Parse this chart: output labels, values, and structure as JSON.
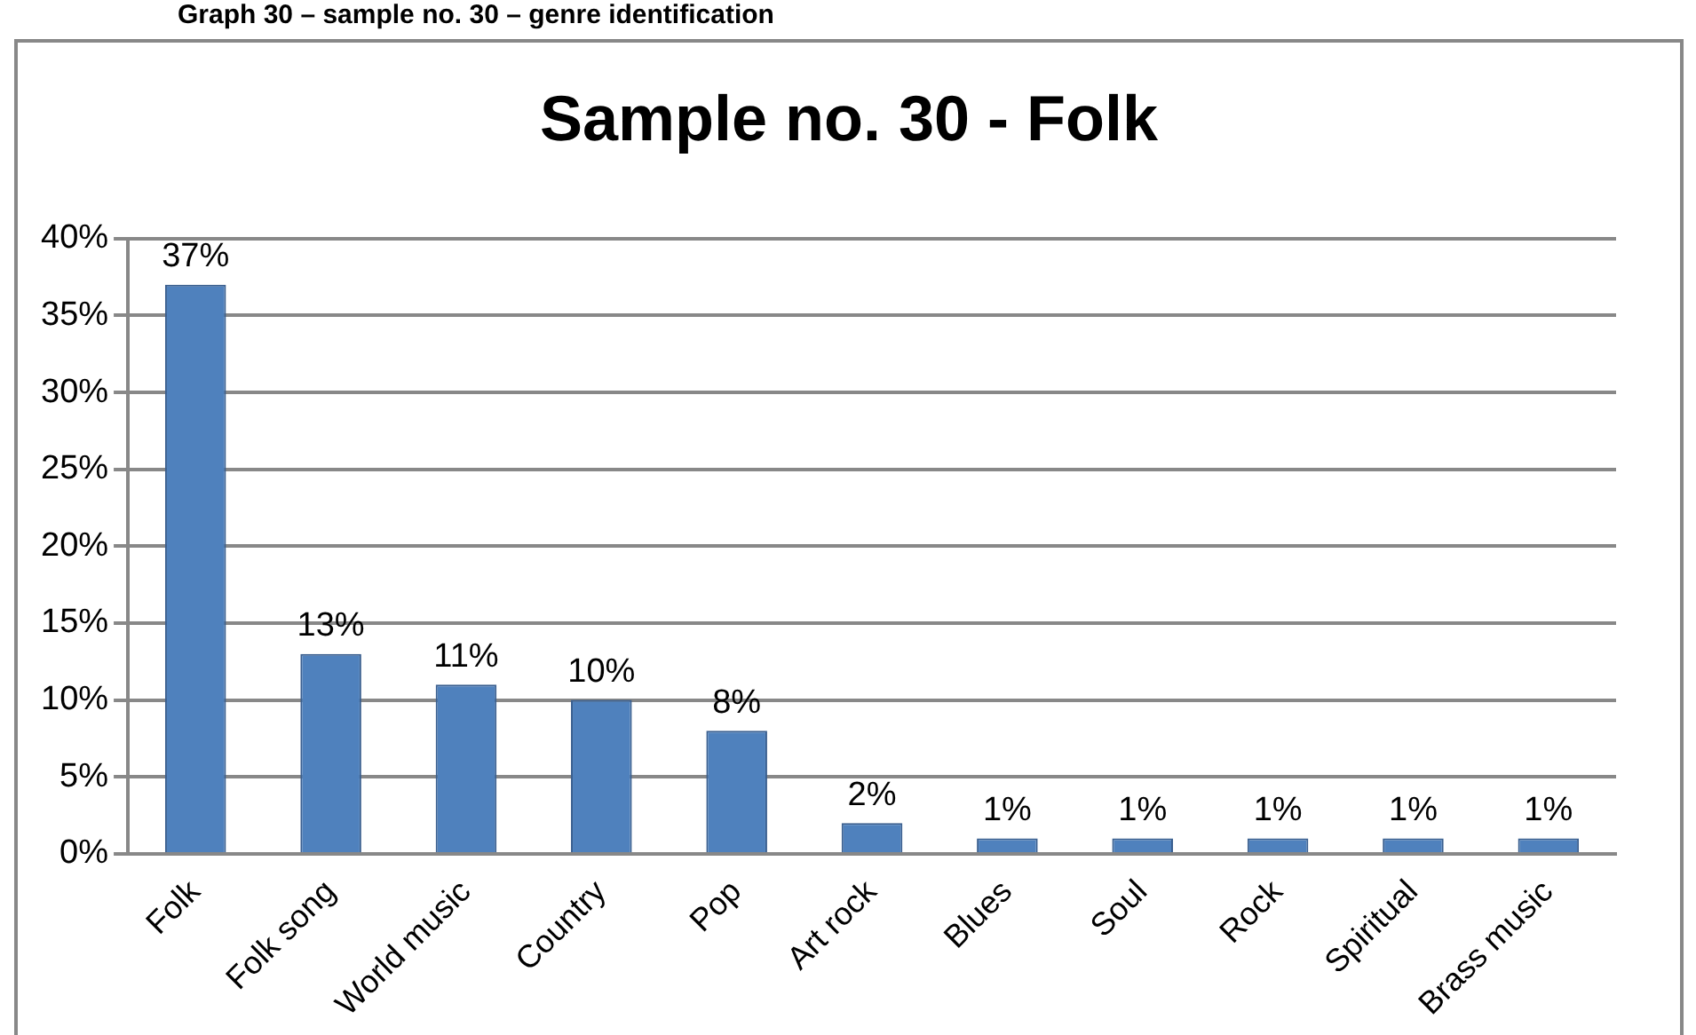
{
  "chart_data": {
    "type": "bar",
    "title": "Sample no. 30 - Folk",
    "annotations": [
      "Graph 30 – sample no. 30 – genre identification"
    ],
    "categories": [
      "Folk",
      "Folk song",
      "World music",
      "Country",
      "Pop",
      "Art rock",
      "Blues",
      "Soul",
      "Rock",
      "Spiritual",
      "Brass music"
    ],
    "values": [
      37,
      13,
      11,
      10,
      8,
      2,
      1,
      1,
      1,
      1,
      1
    ],
    "value_labels": [
      "37%",
      "13%",
      "11%",
      "10%",
      "8%",
      "2%",
      "1%",
      "1%",
      "1%",
      "1%",
      "1%"
    ],
    "color": "#4f81bd",
    "ylim": [
      0,
      40
    ],
    "yticks": [
      {
        "value": 0,
        "label": "0%"
      },
      {
        "value": 5,
        "label": "5%"
      },
      {
        "value": 10,
        "label": "10%"
      },
      {
        "value": 15,
        "label": "15%"
      },
      {
        "value": 20,
        "label": "20%"
      },
      {
        "value": 25,
        "label": "25%"
      },
      {
        "value": 30,
        "label": "30%"
      },
      {
        "value": 35,
        "label": "35%"
      },
      {
        "value": 40,
        "label": "40%"
      }
    ],
    "grid": "y",
    "legend": false
  }
}
